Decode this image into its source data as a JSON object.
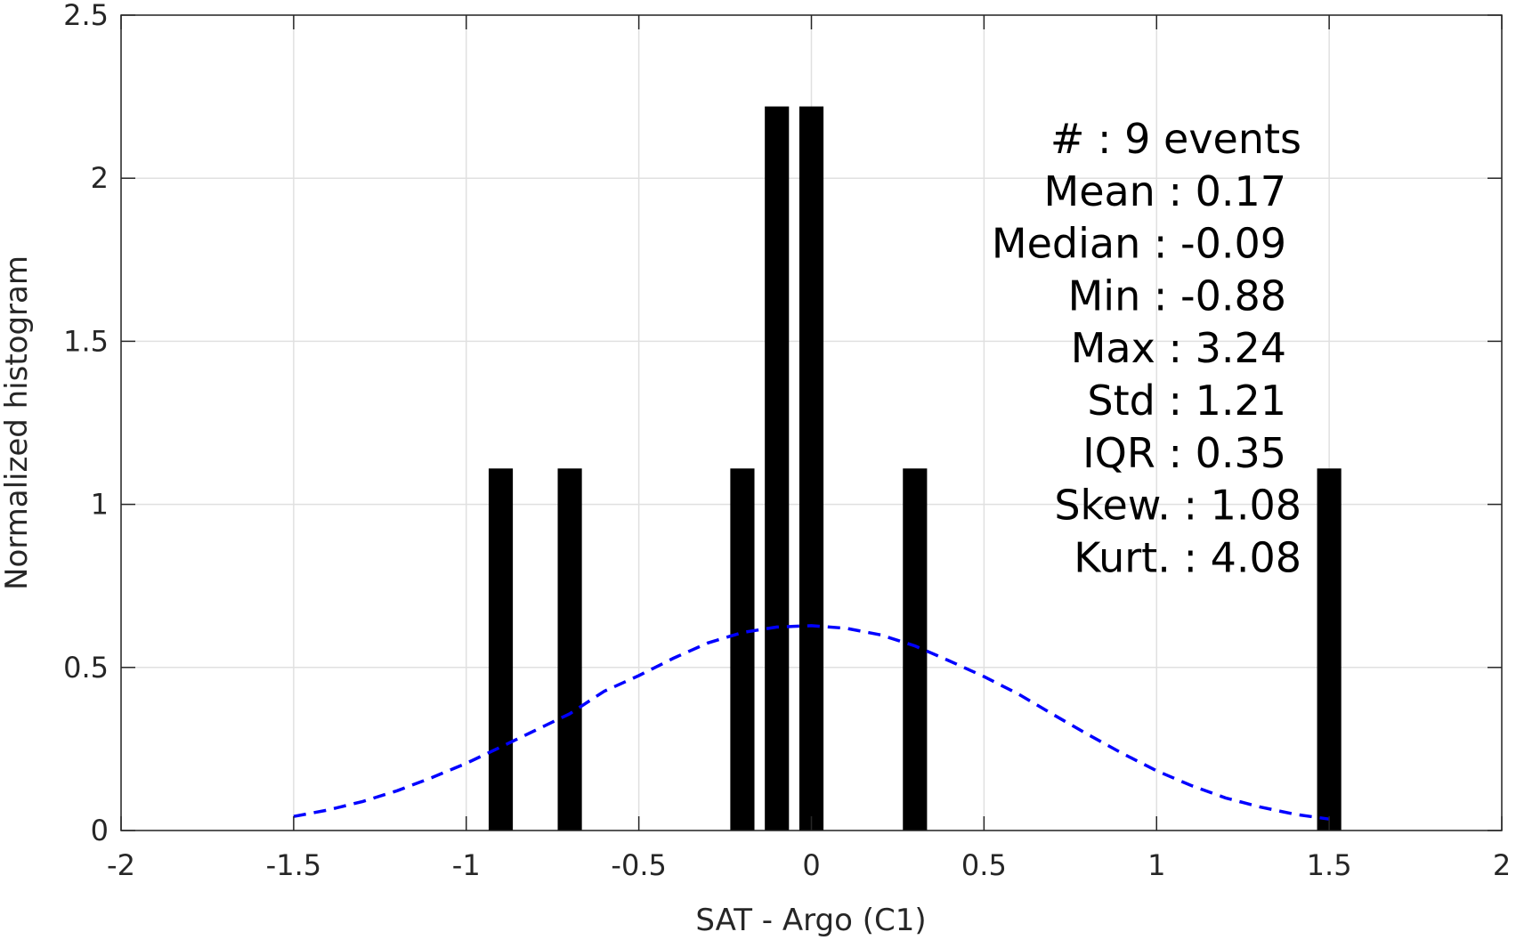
{
  "chart_data": {
    "type": "bar",
    "title": "",
    "xlabel": "SAT - Argo (C1)",
    "ylabel": "Normalized histogram",
    "xlim": [
      -2,
      2
    ],
    "ylim": [
      0,
      2.5
    ],
    "xticks": [
      -2,
      -1.5,
      -1,
      -0.5,
      0,
      0.5,
      1,
      1.5,
      2
    ],
    "xtick_labels": [
      "-2",
      "-1.5",
      "-1",
      "-0.5",
      "0",
      "0.5",
      "1",
      "1.5",
      "2"
    ],
    "yticks": [
      0,
      0.5,
      1,
      1.5,
      2,
      2.5
    ],
    "ytick_labels": [
      "0",
      "0.5",
      "1",
      "1.5",
      "2",
      "2.5"
    ],
    "grid": true,
    "bar_width": 0.07,
    "bar_color": "#000000",
    "bars": [
      {
        "x": -0.9,
        "y": 1.11
      },
      {
        "x": -0.7,
        "y": 1.11
      },
      {
        "x": -0.2,
        "y": 1.11
      },
      {
        "x": -0.1,
        "y": 2.22
      },
      {
        "x": 0.0,
        "y": 2.22
      },
      {
        "x": 0.3,
        "y": 1.11
      },
      {
        "x": 1.5,
        "y": 1.11
      }
    ],
    "fit_curve": {
      "style": "dashed",
      "color": "#0000ff",
      "x": [
        -1.5,
        -1.4,
        -1.3,
        -1.2,
        -1.1,
        -1.0,
        -0.9,
        -0.8,
        -0.7,
        -0.6,
        -0.5,
        -0.4,
        -0.3,
        -0.2,
        -0.1,
        0.0,
        0.1,
        0.2,
        0.3,
        0.4,
        0.5,
        0.6,
        0.7,
        0.8,
        0.9,
        1.0,
        1.1,
        1.2,
        1.3,
        1.4,
        1.5
      ],
      "y": [
        0.043,
        0.063,
        0.089,
        0.122,
        0.162,
        0.206,
        0.256,
        0.307,
        0.358,
        0.427,
        0.475,
        0.528,
        0.575,
        0.607,
        0.624,
        0.628,
        0.62,
        0.6,
        0.566,
        0.52,
        0.472,
        0.418,
        0.356,
        0.295,
        0.237,
        0.183,
        0.138,
        0.1,
        0.072,
        0.05,
        0.035
      ]
    },
    "stats": [
      "#  : 9 events",
      "Mean : 0.17",
      "Median : -0.09",
      "Min : -0.88",
      "Max : 3.24",
      "Std : 1.21",
      "IQR : 0.35",
      "Skew. : 1.08",
      "Kurt. : 4.08"
    ]
  },
  "colors": {
    "axis": "#262626",
    "grid": "#e0e0e0",
    "bar": "#000000",
    "fit": "#0000ff"
  }
}
